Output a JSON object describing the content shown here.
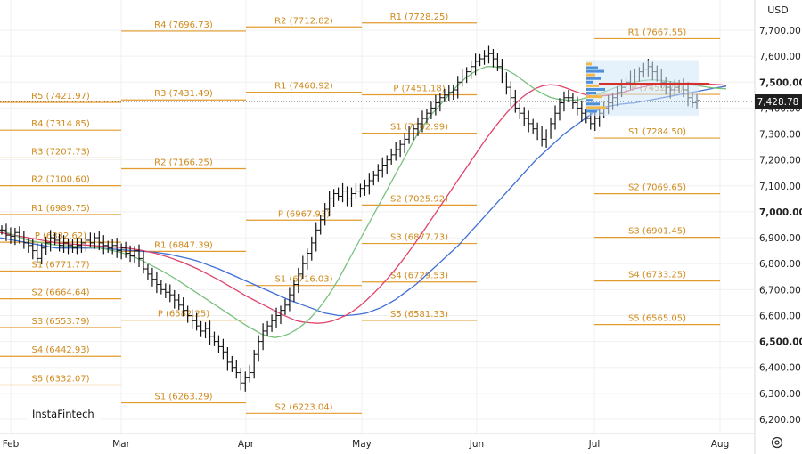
{
  "currency": "USD",
  "watermark": "InstaFintech",
  "last_price": "7,428.78",
  "chart_data": {
    "type": "ohlc",
    "y_ticks": [
      "7,700.00",
      "7,600.00",
      "7,500.00",
      "7,400.00",
      "7,300.00",
      "7,200.00",
      "7,100.00",
      "7,000.00",
      "6,900.00",
      "6,800.00",
      "6,700.00",
      "6,600.00",
      "6,500.00",
      "6,400.00",
      "6,300.00",
      "6,200.00"
    ],
    "y_bold": [
      "7,500.00",
      "7,000.00",
      "6,500.00"
    ],
    "x_ticks": [
      "Feb",
      "Mar",
      "Apr",
      "May",
      "Jun",
      "Jul",
      "Aug"
    ],
    "ylim": [
      6160,
      7790
    ],
    "pivot_groups": [
      {
        "start": "Feb",
        "levels": [
          {
            "name": "R5",
            "value": "7421.97",
            "v": 7421.97
          },
          {
            "name": "R4",
            "value": "7314.85",
            "v": 7314.85
          },
          {
            "name": "R3",
            "value": "7207.73",
            "v": 7207.73
          },
          {
            "name": "R2",
            "value": "7100.60",
            "v": 7100.6
          },
          {
            "name": "R1",
            "value": "6989.75",
            "v": 6989.75
          },
          {
            "name": "P",
            "value": "6882.62",
            "v": 6882.62
          },
          {
            "name": "S1",
            "value": "6771.77",
            "v": 6771.77
          },
          {
            "name": "S2",
            "value": "6664.64",
            "v": 6664.64
          },
          {
            "name": "S3",
            "value": "6553.79",
            "v": 6553.79
          },
          {
            "name": "S4",
            "value": "6442.93",
            "v": 6442.93
          },
          {
            "name": "S5",
            "value": "6332.07",
            "v": 6332.07
          }
        ]
      },
      {
        "start": "Mar",
        "levels": [
          {
            "name": "R4",
            "value": "7696.73",
            "v": 7696.73
          },
          {
            "name": "R3",
            "value": "7431.49",
            "v": 7431.49
          },
          {
            "name": "R2",
            "value": "7166.25",
            "v": 7166.25
          },
          {
            "name": "R1",
            "value": "6847.39",
            "v": 6847.39
          },
          {
            "name": "P",
            "value": "6582.25",
            "v": 6582.25
          },
          {
            "name": "S1",
            "value": "6263.29",
            "v": 6263.29
          }
        ]
      },
      {
        "start": "Apr",
        "levels": [
          {
            "name": "R2",
            "value": "7712.82",
            "v": 7712.82
          },
          {
            "name": "R1",
            "value": "7460.92",
            "v": 7460.92
          },
          {
            "name": "P",
            "value": "6967.93",
            "v": 6967.93
          },
          {
            "name": "S1",
            "value": "6716.03",
            "v": 6716.03
          },
          {
            "name": "S2",
            "value": "6223.04",
            "v": 6223.04
          }
        ]
      },
      {
        "start": "May",
        "levels": [
          {
            "name": "R1",
            "value": "7728.25",
            "v": 7728.25
          },
          {
            "name": "P",
            "value": "7451.18",
            "v": 7451.18
          },
          {
            "name": "S1",
            "value": "7302.99",
            "v": 7302.99
          },
          {
            "name": "S2",
            "value": "7025.92",
            "v": 7025.92
          },
          {
            "name": "S3",
            "value": "6877.73",
            "v": 6877.73
          },
          {
            "name": "S4",
            "value": "6729.53",
            "v": 6729.53
          },
          {
            "name": "S5",
            "value": "6581.33",
            "v": 6581.33
          }
        ]
      },
      {
        "start": "Jun",
        "levels": [
          {
            "name": "R1",
            "value": "7667.55",
            "v": 7667.55
          },
          {
            "name": "P",
            "value": "7452.70",
            "v": 7452.7
          },
          {
            "name": "S1",
            "value": "7284.50",
            "v": 7284.5
          },
          {
            "name": "S2",
            "value": "7069.65",
            "v": 7069.65
          },
          {
            "name": "S3",
            "value": "6901.45",
            "v": 6901.45
          },
          {
            "name": "S4",
            "value": "6733.25",
            "v": 6733.25
          },
          {
            "name": "S5",
            "value": "6565.05",
            "v": 6565.05
          }
        ]
      }
    ],
    "closes": [
      6930,
      6910,
      6905,
      6920,
      6895,
      6880,
      6870,
      6850,
      6820,
      6860,
      6880,
      6900,
      6890,
      6870,
      6880,
      6870,
      6860,
      6870,
      6880,
      6890,
      6880,
      6900,
      6880,
      6870,
      6860,
      6870,
      6850,
      6860,
      6840,
      6830,
      6850,
      6820,
      6780,
      6760,
      6740,
      6720,
      6700,
      6690,
      6680,
      6660,
      6640,
      6620,
      6600,
      6580,
      6560,
      6540,
      6550,
      6520,
      6500,
      6480,
      6460,
      6420,
      6400,
      6380,
      6340,
      6360,
      6380,
      6450,
      6500,
      6540,
      6560,
      6580,
      6600,
      6620,
      6640,
      6680,
      6720,
      6760,
      6800,
      6840,
      6880,
      6930,
      6970,
      7010,
      7050,
      7070,
      7060,
      7080,
      7050,
      7070,
      7080,
      7090,
      7100,
      7120,
      7140,
      7160,
      7180,
      7200,
      7220,
      7240,
      7260,
      7280,
      7300,
      7320,
      7340,
      7360,
      7380,
      7400,
      7420,
      7440,
      7450,
      7460,
      7470,
      7500,
      7520,
      7540,
      7560,
      7580,
      7590,
      7600,
      7610,
      7590,
      7560,
      7520,
      7480,
      7440,
      7400,
      7380,
      7360,
      7340,
      7320,
      7300,
      7280,
      7300,
      7340,
      7380,
      7420,
      7440,
      7440,
      7420,
      7400,
      7380,
      7360,
      7340,
      7360,
      7380,
      7400,
      7420,
      7440,
      7460,
      7480,
      7500,
      7520,
      7520,
      7540,
      7550,
      7560,
      7540,
      7520,
      7500,
      7480,
      7470,
      7480,
      7490,
      7470,
      7440,
      7420,
      7430
    ],
    "ma_blue": [
      6900,
      6895,
      6890,
      6885,
      6880,
      6875,
      6870,
      6865,
      6860,
      6860,
      6860,
      6860,
      6860,
      6860,
      6860,
      6858,
      6856,
      6854,
      6852,
      6850,
      6848,
      6846,
      6844,
      6840,
      6836,
      6830,
      6824,
      6818,
      6810,
      6800,
      6790,
      6780,
      6768,
      6756,
      6744,
      6732,
      6720,
      6708,
      6696,
      6684,
      6672,
      6660,
      6650,
      6640,
      6630,
      6620,
      6610,
      6605,
      6600,
      6600,
      6602,
      6605,
      6610,
      6620,
      6630,
      6645,
      6660,
      6680,
      6700,
      6720,
      6745,
      6770,
      6795,
      6820,
      6845,
      6870,
      6900,
      6930,
      6960,
      6990,
      7020,
      7050,
      7080,
      7110,
      7140,
      7170,
      7200,
      7225,
      7250,
      7275,
      7300,
      7320,
      7340,
      7360,
      7380,
      7395,
      7405,
      7410,
      7415,
      7418,
      7420,
      7425,
      7430,
      7435,
      7440,
      7445,
      7450,
      7455,
      7460,
      7465,
      7470,
      7475,
      7480,
      7484
    ],
    "ma_red": [
      6920,
      6915,
      6910,
      6905,
      6900,
      6895,
      6890,
      6885,
      6880,
      6878,
      6876,
      6874,
      6872,
      6870,
      6868,
      6866,
      6864,
      6862,
      6860,
      6856,
      6852,
      6846,
      6840,
      6832,
      6824,
      6814,
      6804,
      6792,
      6780,
      6766,
      6752,
      6738,
      6722,
      6706,
      6690,
      6674,
      6660,
      6646,
      6632,
      6618,
      6604,
      6592,
      6580,
      6575,
      6572,
      6570,
      6572,
      6578,
      6588,
      6600,
      6616,
      6636,
      6660,
      6686,
      6714,
      6744,
      6776,
      6810,
      6846,
      6884,
      6924,
      6964,
      7004,
      7044,
      7084,
      7124,
      7164,
      7204,
      7244,
      7284,
      7320,
      7354,
      7386,
      7414,
      7440,
      7460,
      7476,
      7486,
      7490,
      7488,
      7480,
      7470,
      7460,
      7452,
      7448,
      7446,
      7448,
      7452,
      7458,
      7466,
      7474,
      7480,
      7486,
      7490,
      7492,
      7494,
      7495,
      7496,
      7496,
      7495,
      7494,
      7492,
      7490,
      7488
    ],
    "ma_green": [
      6930,
      6920,
      6910,
      6900,
      6890,
      6885,
      6880,
      6875,
      6872,
      6870,
      6868,
      6866,
      6864,
      6862,
      6860,
      6856,
      6850,
      6844,
      6836,
      6826,
      6814,
      6800,
      6786,
      6772,
      6756,
      6740,
      6722,
      6704,
      6686,
      6668,
      6650,
      6632,
      6614,
      6596,
      6578,
      6560,
      6545,
      6530,
      6520,
      6515,
      6520,
      6530,
      6545,
      6565,
      6590,
      6620,
      6655,
      6695,
      6740,
      6790,
      6840,
      6890,
      6940,
      6990,
      7040,
      7090,
      7140,
      7190,
      7240,
      7290,
      7330,
      7370,
      7400,
      7430,
      7460,
      7490,
      7515,
      7535,
      7550,
      7560,
      7560,
      7555,
      7545,
      7530,
      7510,
      7490,
      7470,
      7455,
      7442,
      7435,
      7432,
      7430,
      7432,
      7438,
      7446,
      7456,
      7466,
      7476,
      7486,
      7494,
      7500,
      7505,
      7508,
      7508,
      7506,
      7502,
      7498,
      7494,
      7490,
      7486,
      7482,
      7478,
      7476,
      7474
    ]
  }
}
